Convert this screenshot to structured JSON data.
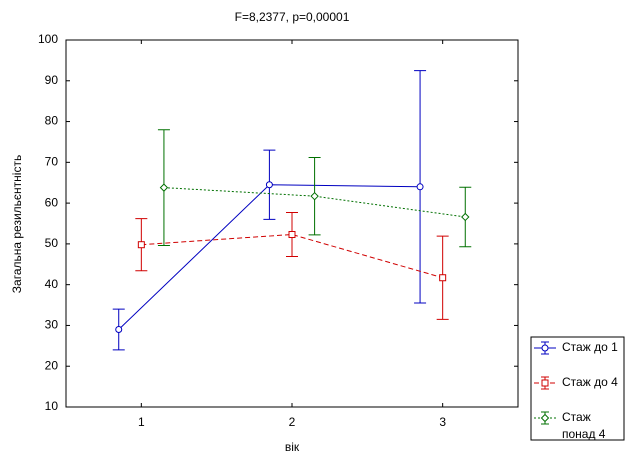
{
  "chart_data": {
    "type": "errorbar-line",
    "title": "F=8,2377, p=0,00001",
    "x_label": "вік",
    "y_label": "Загальна резильєнтність",
    "x": [
      1,
      2,
      3
    ],
    "xlim": [
      0.5,
      3.5
    ],
    "xticks": [
      1,
      2,
      3
    ],
    "ylim": [
      10,
      100
    ],
    "yticks": [
      10,
      20,
      30,
      40,
      50,
      60,
      70,
      80,
      90,
      100
    ],
    "legend": "right-bottom",
    "series": [
      {
        "name": "Стаж до 1",
        "color": "#0000c0",
        "dash": "solid",
        "marker": "circle",
        "values": [
          29,
          64.5,
          64
        ],
        "errors": [
          5,
          8.5,
          28.5
        ]
      },
      {
        "name": "Стаж до 4",
        "color": "#d00000",
        "dash": "dashed",
        "marker": "square",
        "values": [
          49.8,
          52.3,
          41.7
        ],
        "errors": [
          6.4,
          5.4,
          10.2
        ]
      },
      {
        "name": "Стаж понад 4",
        "color": "#007000",
        "dash": "dotted",
        "marker": "diamond",
        "values": [
          63.8,
          61.7,
          56.6
        ],
        "errors": [
          14.2,
          9.5,
          7.3
        ]
      }
    ]
  }
}
